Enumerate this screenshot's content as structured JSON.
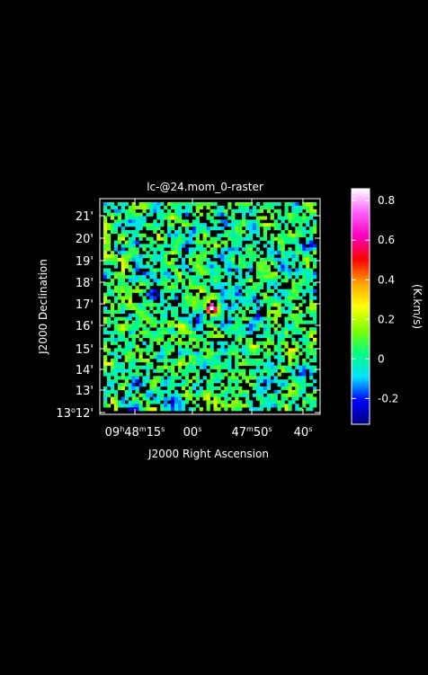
{
  "chart_data": {
    "type": "heatmap",
    "title": "lc-@24.mom_0-raster",
    "xlabel": "J2000 Right Ascension",
    "ylabel": "J2000 Declination",
    "x_ticks": [
      {
        "main": "09",
        "sup1": "h",
        "mid": "48",
        "sup2": "m",
        "sec": "15",
        "sup3": "s"
      },
      {
        "main": "",
        "sup1": "",
        "mid": "",
        "sup2": "",
        "sec": "00",
        "sup3": "s"
      },
      {
        "main": "",
        "sup1": "",
        "mid": "47",
        "sup2": "m",
        "sec": "50",
        "sup3": "s"
      },
      {
        "main": "",
        "sup1": "",
        "mid": "",
        "sup2": "",
        "sec": "40",
        "sup3": "s"
      }
    ],
    "y_ticks": [
      {
        "deg": "13",
        "degsym": "o",
        "min": "12'"
      },
      {
        "deg": "",
        "degsym": "",
        "min": "13'"
      },
      {
        "deg": "",
        "degsym": "",
        "min": "14'"
      },
      {
        "deg": "",
        "degsym": "",
        "min": "15'"
      },
      {
        "deg": "",
        "degsym": "",
        "min": "16'"
      },
      {
        "deg": "",
        "degsym": "",
        "min": "17'"
      },
      {
        "deg": "",
        "degsym": "",
        "min": "18'"
      },
      {
        "deg": "",
        "degsym": "",
        "min": "19'"
      },
      {
        "deg": "",
        "degsym": "",
        "min": "20'"
      },
      {
        "deg": "",
        "degsym": "",
        "min": "21'"
      }
    ],
    "colorbar": {
      "label": "(K.km/s)",
      "range": [
        -0.33,
        0.86
      ],
      "ticks": [
        "0.8",
        "0.6",
        "0.4",
        "0.2",
        "0",
        "-0.2"
      ],
      "tick_values": [
        0.8,
        0.6,
        0.4,
        0.2,
        0.0,
        -0.2
      ]
    },
    "colormap": [
      "#00007f",
      "#0000ff",
      "#00e0ff",
      "#00ff80",
      "#80ff00",
      "#ffff00",
      "#ffa000",
      "#ff0000",
      "#ff00c0",
      "#ff60ff",
      "#ffffff"
    ],
    "features": [
      {
        "name": "peak",
        "ra": "09h47m58s",
        "dec": "+13°16.6'",
        "value": 0.86
      }
    ],
    "ra_range": [
      "09h48m19s",
      "09h47m42s"
    ],
    "dec_range": [
      "+13°12.4'",
      "+13°21.4'"
    ]
  }
}
